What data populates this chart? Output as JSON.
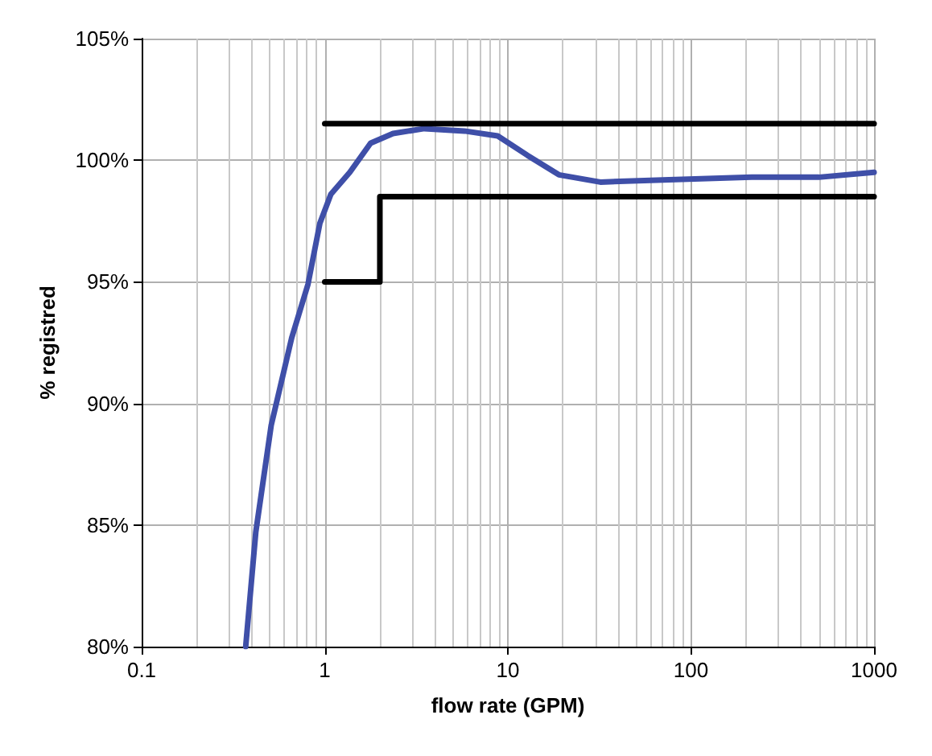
{
  "chart_data": {
    "type": "line",
    "xlabel": "flow rate (GPM)",
    "ylabel": "% registred",
    "log": "x",
    "grid": true,
    "marker": "none",
    "line_style": "solid",
    "xlim": [
      0.1,
      1000
    ],
    "xticks": [
      0.1,
      1,
      10,
      100,
      1000
    ],
    "ylim": [
      80,
      105
    ],
    "yticks": [
      {
        "value": 80,
        "label": "80%"
      },
      {
        "value": 85,
        "label": "85%"
      },
      {
        "value": 90,
        "label": "90%"
      },
      {
        "value": 95,
        "label": "95%"
      },
      {
        "value": 100,
        "label": "100%"
      },
      {
        "value": 105,
        "label": "105%"
      }
    ],
    "series": [
      {
        "color": "#3f4fa8",
        "x": [
          0.37,
          0.42,
          0.51,
          0.66,
          0.81,
          0.94,
          1.08,
          1.37,
          1.78,
          2.36,
          3.5,
          5.8,
          8.8,
          12.8,
          19,
          32,
          76,
          215,
          500,
          1000
        ],
        "values": [
          80,
          84.7,
          89.1,
          92.7,
          94.9,
          97.4,
          98.6,
          99.5,
          100.7,
          101.1,
          101.3,
          101.2,
          101.0,
          100.2,
          99.4,
          99.1,
          99.2,
          99.3,
          99.3,
          99.5
        ]
      },
      {
        "color": "#000000",
        "x": [
          1,
          1000
        ],
        "values": [
          101.5,
          101.5
        ]
      },
      {
        "color": "#000000",
        "x": [
          1,
          2,
          2,
          1000
        ],
        "values": [
          95,
          95,
          98.5,
          98.5
        ]
      }
    ]
  }
}
